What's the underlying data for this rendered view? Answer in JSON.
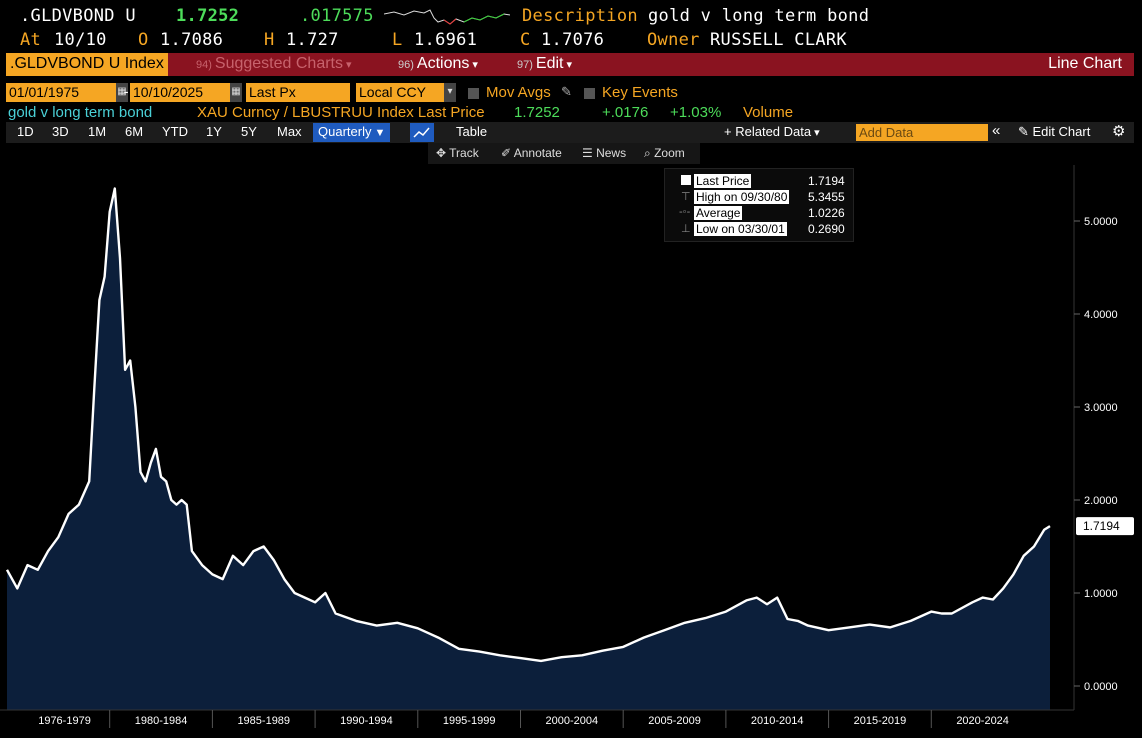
{
  "header": {
    "ticker": ".GLDVBOND U",
    "last": "1.7252",
    "change": ".017575",
    "description_label": "Description",
    "description": "gold v long term bond",
    "at_label": "At",
    "at_date": "10/10",
    "open_label": "O",
    "open": "1.7086",
    "high_label": "H",
    "high": "1.727",
    "low_label": "L",
    "low": "1.6961",
    "close_label": "C",
    "close": "1.7076",
    "owner_label": "Owner",
    "owner": "RUSSELL CLARK"
  },
  "menu": {
    "security": ".GLDVBOND U Index",
    "suggested_num": "94)",
    "suggested": "Suggested Charts",
    "actions_num": "96)",
    "actions": "Actions",
    "edit_num": "97)",
    "edit": "Edit",
    "chart_type": "Line Chart"
  },
  "inputs": {
    "start_date": "01/01/1975",
    "end_date": "10/10/2025",
    "field": "Last Px",
    "currency": "Local CCY",
    "mov_avgs": "Mov Avgs",
    "key_events": "Key Events"
  },
  "series_line": {
    "name": "gold v long term bond",
    "formula": "XAU Curncy / LBUSTRUU Index Last Price",
    "last": "1.7252",
    "change": "+.0176",
    "pct": "+1.03%",
    "volume": "Volume"
  },
  "toolbar": {
    "ranges": [
      "1D",
      "3D",
      "1M",
      "6M",
      "YTD",
      "1Y",
      "5Y",
      "Max"
    ],
    "frequency": "Quarterly",
    "table": "Table",
    "related_data": "Related Data",
    "add_data_placeholder": "Add Data",
    "edit_chart": "Edit Chart"
  },
  "subtools": {
    "track": "Track",
    "annotate": "Annotate",
    "news": "News",
    "zoom": "Zoom"
  },
  "legend": {
    "last_label": "Last Price",
    "last_value": "1.7194",
    "high_label": "High on 09/30/80",
    "high_value": "5.3455",
    "avg_label": "Average",
    "avg_value": "1.0226",
    "low_label": "Low on 03/30/01",
    "low_value": "0.2690"
  },
  "chart_data": {
    "type": "area",
    "title": "",
    "xlabel": "",
    "ylabel": "",
    "ylim": [
      -0.2,
      5.6
    ],
    "yticks": [
      "0.0000",
      "1.0000",
      "2.0000",
      "3.0000",
      "4.0000",
      "5.0000"
    ],
    "last_value_label": "1.7194",
    "x_categories": [
      "1976-1979",
      "1980-1984",
      "1985-1989",
      "1990-1994",
      "1995-1999",
      "2000-2004",
      "2005-2009",
      "2010-2014",
      "2015-2019",
      "2020-2024"
    ],
    "series": [
      {
        "x": [
          1975.0,
          1975.5,
          1976.0,
          1976.5,
          1977.0,
          1977.5,
          1978.0,
          1978.5,
          1979.0,
          1979.25,
          1979.5,
          1979.75,
          1980.0,
          1980.25,
          1980.5,
          1980.75,
          1981.0,
          1981.25,
          1981.5,
          1981.75,
          1982.0,
          1982.25,
          1982.5,
          1982.75,
          1983.0,
          1983.25,
          1983.5,
          1983.75,
          1984.0,
          1984.5,
          1985.0,
          1985.5,
          1986.0,
          1986.5,
          1987.0,
          1987.5,
          1988.0,
          1988.5,
          1989.0,
          1989.5,
          1990.0,
          1990.5,
          1991.0,
          1992.0,
          1993.0,
          1994.0,
          1995.0,
          1996.0,
          1997.0,
          1998.0,
          1999.0,
          2000.0,
          2001.0,
          2002.0,
          2003.0,
          2004.0,
          2005.0,
          2006.0,
          2007.0,
          2008.0,
          2009.0,
          2010.0,
          2011.0,
          2011.5,
          2012.0,
          2012.5,
          2013.0,
          2013.5,
          2014.0,
          2015.0,
          2016.0,
          2017.0,
          2018.0,
          2019.0,
          2020.0,
          2020.5,
          2021.0,
          2022.0,
          2022.5,
          2023.0,
          2023.5,
          2024.0,
          2024.5,
          2025.0,
          2025.5,
          2025.78
        ],
        "values": [
          1.25,
          1.05,
          1.3,
          1.25,
          1.45,
          1.6,
          1.85,
          1.95,
          2.2,
          3.2,
          4.15,
          4.4,
          5.1,
          5.35,
          4.6,
          3.4,
          3.5,
          3.0,
          2.3,
          2.2,
          2.4,
          2.55,
          2.25,
          2.2,
          2.0,
          1.95,
          2.0,
          1.95,
          1.45,
          1.3,
          1.2,
          1.15,
          1.4,
          1.3,
          1.45,
          1.5,
          1.35,
          1.15,
          1.0,
          0.95,
          0.9,
          1.0,
          0.78,
          0.7,
          0.65,
          0.68,
          0.62,
          0.52,
          0.4,
          0.37,
          0.33,
          0.3,
          0.27,
          0.31,
          0.33,
          0.38,
          0.42,
          0.52,
          0.6,
          0.68,
          0.73,
          0.8,
          0.92,
          0.95,
          0.88,
          0.95,
          0.72,
          0.7,
          0.65,
          0.6,
          0.63,
          0.66,
          0.63,
          0.7,
          0.8,
          0.78,
          0.78,
          0.9,
          0.95,
          0.93,
          1.05,
          1.2,
          1.4,
          1.5,
          1.68,
          1.7194
        ]
      }
    ]
  }
}
